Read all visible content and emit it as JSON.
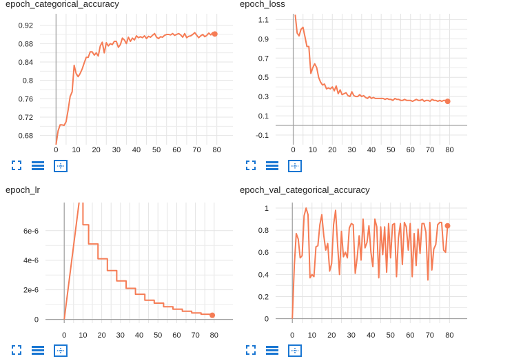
{
  "accent_color": "#f57c55",
  "icons": [
    "fullscreen-icon",
    "list-icon",
    "fit-domain-icon"
  ],
  "chart_data": [
    {
      "type": "line",
      "title": "epoch_categorical_accuracy",
      "xlim": [
        -8,
        88
      ],
      "ylim": [
        0.66,
        0.945
      ],
      "x_ticks": [
        "0",
        "10",
        "20",
        "30",
        "40",
        "50",
        "60",
        "70",
        "80"
      ],
      "y_ticks": [
        "0.68",
        "0.72",
        "0.76",
        "0.8",
        "0.84",
        "0.88",
        "0.92"
      ],
      "grid": true,
      "x": [
        0,
        1,
        2,
        3,
        4,
        5,
        6,
        7,
        8,
        9,
        10,
        11,
        12,
        13,
        14,
        15,
        16,
        17,
        18,
        19,
        20,
        21,
        22,
        23,
        24,
        25,
        26,
        27,
        28,
        29,
        30,
        31,
        32,
        33,
        34,
        35,
        36,
        37,
        38,
        39,
        40,
        41,
        42,
        43,
        44,
        45,
        46,
        47,
        48,
        49,
        50,
        51,
        52,
        53,
        54,
        55,
        56,
        57,
        58,
        59,
        60,
        61,
        62,
        63,
        64,
        65,
        66,
        67,
        68,
        69,
        70,
        71,
        72,
        73,
        74,
        75,
        76,
        77,
        78,
        79
      ],
      "y": [
        0.66,
        0.69,
        0.703,
        0.703,
        0.702,
        0.71,
        0.735,
        0.765,
        0.775,
        0.833,
        0.815,
        0.808,
        0.815,
        0.825,
        0.838,
        0.85,
        0.85,
        0.862,
        0.862,
        0.855,
        0.86,
        0.853,
        0.875,
        0.883,
        0.86,
        0.882,
        0.875,
        0.88,
        0.878,
        0.885,
        0.885,
        0.872,
        0.878,
        0.892,
        0.888,
        0.88,
        0.894,
        0.885,
        0.892,
        0.888,
        0.897,
        0.893,
        0.895,
        0.893,
        0.897,
        0.891,
        0.896,
        0.894,
        0.898,
        0.902,
        0.894,
        0.891,
        0.895,
        0.894,
        0.898,
        0.9,
        0.9,
        0.899,
        0.902,
        0.898,
        0.9,
        0.902,
        0.899,
        0.894,
        0.902,
        0.893,
        0.896,
        0.897,
        0.9,
        0.904,
        0.898,
        0.893,
        0.897,
        0.9,
        0.895,
        0.898,
        0.903,
        0.899,
        0.904,
        0.901
      ]
    },
    {
      "type": "line",
      "title": "epoch_loss",
      "xlim": [
        -9,
        89
      ],
      "ylim": [
        -0.2,
        1.16
      ],
      "x_ticks": [
        "0",
        "10",
        "20",
        "30",
        "40",
        "50",
        "60",
        "70",
        "80"
      ],
      "y_ticks": [
        "-0.1",
        "0.1",
        "0.3",
        "0.5",
        "0.7",
        "0.9",
        "1.1"
      ],
      "grid": true,
      "x": [
        1,
        2,
        3,
        4,
        5,
        6,
        7,
        8,
        9,
        10,
        11,
        12,
        13,
        14,
        15,
        16,
        17,
        18,
        19,
        20,
        21,
        22,
        23,
        24,
        25,
        26,
        27,
        28,
        29,
        30,
        31,
        32,
        33,
        34,
        35,
        36,
        37,
        38,
        39,
        40,
        41,
        42,
        43,
        44,
        45,
        46,
        47,
        48,
        49,
        50,
        51,
        52,
        53,
        54,
        55,
        56,
        57,
        58,
        59,
        60,
        61,
        62,
        63,
        64,
        65,
        66,
        67,
        68,
        69,
        70,
        71,
        72,
        73,
        74,
        75,
        76,
        77,
        78,
        79
      ],
      "y": [
        1.15,
        0.96,
        0.93,
        1.0,
        1.02,
        0.92,
        0.82,
        0.82,
        0.54,
        0.6,
        0.64,
        0.6,
        0.5,
        0.45,
        0.42,
        0.43,
        0.38,
        0.39,
        0.38,
        0.4,
        0.36,
        0.41,
        0.33,
        0.37,
        0.32,
        0.33,
        0.34,
        0.31,
        0.3,
        0.35,
        0.31,
        0.3,
        0.3,
        0.32,
        0.3,
        0.31,
        0.29,
        0.28,
        0.3,
        0.28,
        0.29,
        0.28,
        0.28,
        0.28,
        0.28,
        0.28,
        0.27,
        0.28,
        0.27,
        0.27,
        0.26,
        0.28,
        0.27,
        0.27,
        0.26,
        0.26,
        0.27,
        0.26,
        0.26,
        0.26,
        0.25,
        0.26,
        0.27,
        0.26,
        0.26,
        0.27,
        0.25,
        0.26,
        0.26,
        0.25,
        0.27,
        0.26,
        0.26,
        0.25,
        0.26,
        0.25,
        0.26,
        0.26,
        0.25
      ]
    },
    {
      "type": "line",
      "title": "epoch_lr",
      "xlim": [
        -10,
        90
      ],
      "ylim": [
        -2.5e-07,
        7.9e-06
      ],
      "x_ticks": [
        "0",
        "10",
        "20",
        "30",
        "40",
        "50",
        "60",
        "70",
        "80"
      ],
      "y_ticks": [
        "0",
        "2e-6",
        "4e-6",
        "6e-6"
      ],
      "y_tick_values": [
        0,
        2e-06,
        4e-06,
        6e-06
      ],
      "grid": true,
      "x": [
        0,
        8,
        10,
        10,
        13,
        13,
        18,
        18,
        23,
        23,
        28,
        28,
        33,
        33,
        38,
        38,
        43,
        43,
        48,
        48,
        53,
        53,
        58,
        58,
        63,
        63,
        68,
        68,
        73,
        73,
        78,
        78,
        79
      ],
      "y": [
        0,
        8e-06,
        8e-06,
        6.4e-06,
        6.4e-06,
        5.1e-06,
        5.1e-06,
        4.1e-06,
        4.1e-06,
        3.3e-06,
        3.3e-06,
        2.6e-06,
        2.6e-06,
        2.1e-06,
        2.1e-06,
        1.7e-06,
        1.7e-06,
        1.3e-06,
        1.3e-06,
        1.1e-06,
        1.1e-06,
        8.6e-07,
        8.6e-07,
        6.9e-07,
        6.9e-07,
        5.5e-07,
        5.5e-07,
        4.4e-07,
        4.4e-07,
        3.5e-07,
        3.5e-07,
        2.8e-07,
        2.8e-07
      ]
    },
    {
      "type": "line",
      "title": "epoch_val_categorical_accuracy",
      "xlim": [
        -8.5,
        89
      ],
      "ylim": [
        -0.04,
        1.05
      ],
      "x_ticks": [
        "0",
        "10",
        "20",
        "30",
        "40",
        "50",
        "60",
        "70",
        "80"
      ],
      "y_ticks": [
        "0",
        "0.2",
        "0.4",
        "0.6",
        "0.8",
        "1"
      ],
      "grid": true,
      "x": [
        0,
        1,
        2,
        3,
        4,
        5,
        6,
        7,
        8,
        9,
        10,
        11,
        12,
        13,
        14,
        15,
        16,
        17,
        18,
        19,
        20,
        21,
        22,
        23,
        24,
        25,
        26,
        27,
        28,
        29,
        30,
        31,
        32,
        33,
        34,
        35,
        36,
        37,
        38,
        39,
        40,
        41,
        42,
        43,
        44,
        45,
        46,
        47,
        48,
        49,
        50,
        51,
        52,
        53,
        54,
        55,
        56,
        57,
        58,
        59,
        60,
        61,
        62,
        63,
        64,
        65,
        66,
        67,
        68,
        69,
        70,
        71,
        72,
        73,
        74,
        75,
        76,
        77,
        78,
        79
      ],
      "y": [
        0,
        0.48,
        0.77,
        0.72,
        0.55,
        0.57,
        0.93,
        1.0,
        0.94,
        0.37,
        0.4,
        0.38,
        0.65,
        0.66,
        0.85,
        0.94,
        0.75,
        0.62,
        0.68,
        0.43,
        0.5,
        0.85,
        0.98,
        0.68,
        0.4,
        0.79,
        0.56,
        0.6,
        0.55,
        0.82,
        0.86,
        0.85,
        0.41,
        0.55,
        0.75,
        0.53,
        0.9,
        0.64,
        0.69,
        0.84,
        0.6,
        0.47,
        0.9,
        0.83,
        0.37,
        0.83,
        0.58,
        0.83,
        0.42,
        0.86,
        0.55,
        0.85,
        0.86,
        0.38,
        0.73,
        0.86,
        0.49,
        0.87,
        0.83,
        0.62,
        0.86,
        0.38,
        0.77,
        0.48,
        0.81,
        0.59,
        0.86,
        0.86,
        0.78,
        0.35,
        0.87,
        0.44,
        0.63,
        0.67,
        0.85,
        0.87,
        0.87,
        0.62,
        0.6,
        0.84
      ]
    }
  ]
}
